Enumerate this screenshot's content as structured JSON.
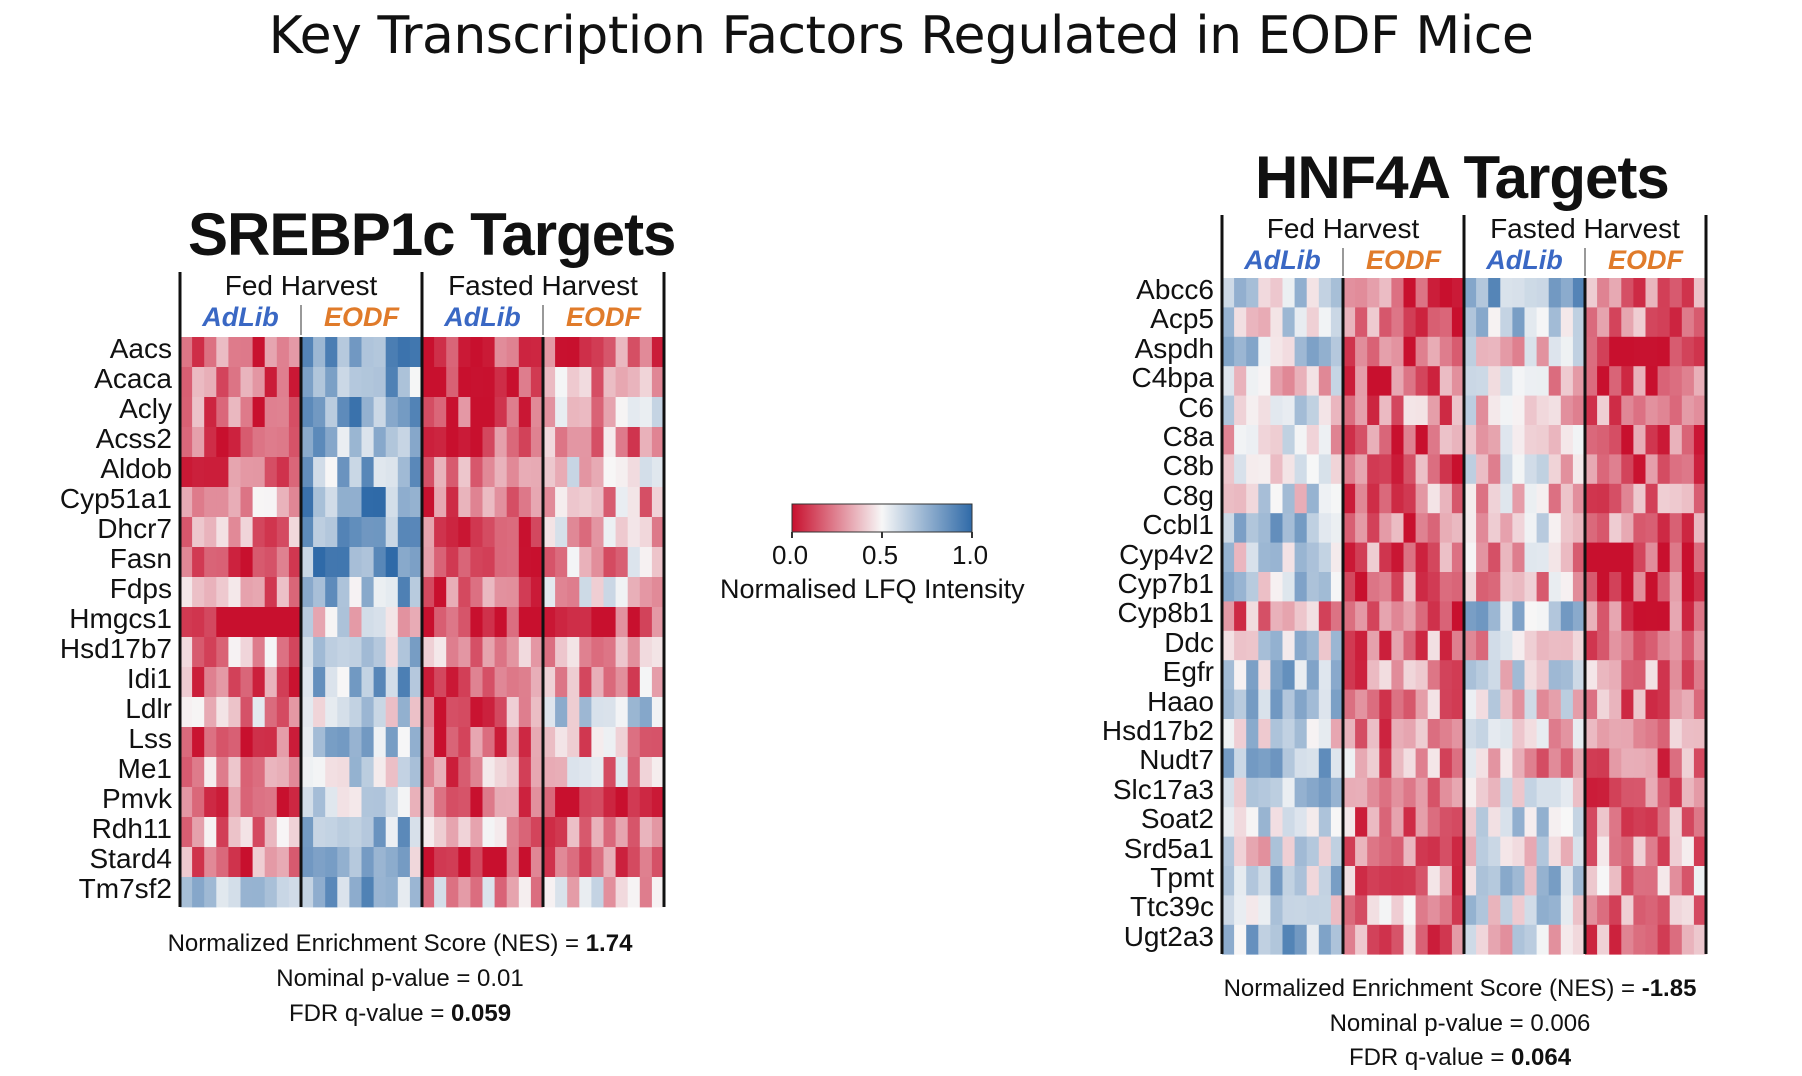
{
  "title": "Key Transcription Factors Regulated in EODF Mice",
  "colors": {
    "low": "#c8102e",
    "mid": "#f7f7f7",
    "high": "#2f6aa8",
    "adlib": "#3a68c4",
    "eodf": "#e07b2a"
  },
  "legend": {
    "ticks": [
      "0.0",
      "0.5",
      "1.0"
    ],
    "label": "Normalised LFQ Intensity"
  },
  "chart_data": [
    {
      "type": "heatmap",
      "title": "SREBP1c Targets",
      "harvest_groups": [
        "Fed Harvest",
        "Fasted Harvest"
      ],
      "conditions": [
        "AdLib",
        "EODF",
        "AdLib",
        "EODF"
      ],
      "samples_per_condition": 10,
      "value_range": [
        0,
        1
      ],
      "rows": [
        "Aacs",
        "Acaca",
        "Acly",
        "Acss2",
        "Aldob",
        "Cyp51a1",
        "Dhcr7",
        "Fasn",
        "Fdps",
        "Hmgcs1",
        "Hsd17b7",
        "Idi1",
        "Ldlr",
        "Lss",
        "Me1",
        "Pmvk",
        "Rdh11",
        "Stard4",
        "Tm7sf2"
      ],
      "group_means": [
        [
          0.15,
          0.8,
          0.08,
          0.15
        ],
        [
          0.2,
          0.72,
          0.1,
          0.35
        ],
        [
          0.18,
          0.75,
          0.1,
          0.4
        ],
        [
          0.15,
          0.7,
          0.1,
          0.3
        ],
        [
          0.2,
          0.68,
          0.25,
          0.5
        ],
        [
          0.3,
          0.8,
          0.15,
          0.35
        ],
        [
          0.25,
          0.75,
          0.2,
          0.4
        ],
        [
          0.12,
          0.82,
          0.1,
          0.35
        ],
        [
          0.25,
          0.7,
          0.15,
          0.45
        ],
        [
          0.05,
          0.5,
          0.08,
          0.1
        ],
        [
          0.3,
          0.65,
          0.3,
          0.25
        ],
        [
          0.2,
          0.72,
          0.15,
          0.3
        ],
        [
          0.35,
          0.6,
          0.2,
          0.6
        ],
        [
          0.15,
          0.68,
          0.15,
          0.3
        ],
        [
          0.3,
          0.55,
          0.25,
          0.35
        ],
        [
          0.12,
          0.5,
          0.15,
          0.08
        ],
        [
          0.3,
          0.7,
          0.3,
          0.25
        ],
        [
          0.2,
          0.65,
          0.1,
          0.25
        ],
        [
          0.7,
          0.72,
          0.4,
          0.45
        ]
      ],
      "stats": {
        "nes_label": "Normalized Enrichment Score (NES) = ",
        "nes": "1.74",
        "pval": "Nominal p-value = 0.01",
        "fdr_label": "FDR q-value = ",
        "fdr": "0.059"
      }
    },
    {
      "type": "heatmap",
      "title": "HNF4A Targets",
      "harvest_groups": [
        "Fed Harvest",
        "Fasted Harvest"
      ],
      "conditions": [
        "AdLib",
        "EODF",
        "AdLib",
        "EODF"
      ],
      "samples_per_condition": 10,
      "value_range": [
        0,
        1
      ],
      "rows": [
        "Abcc6",
        "Acp5",
        "Aspdh",
        "C4bpa",
        "C6",
        "C8a",
        "C8b",
        "C8g",
        "Ccbl1",
        "Cyp4v2",
        "Cyp7b1",
        "Cyp8b1",
        "Ddc",
        "Egfr",
        "Haao",
        "Hsd17b2",
        "Nudt7",
        "Slc17a3",
        "Soat2",
        "Srd5a1",
        "Tpmt",
        "Ttc39c",
        "Ugt2a3"
      ],
      "group_means": [
        [
          0.6,
          0.2,
          0.8,
          0.25
        ],
        [
          0.55,
          0.2,
          0.6,
          0.25
        ],
        [
          0.6,
          0.2,
          0.45,
          0.15
        ],
        [
          0.45,
          0.15,
          0.4,
          0.15
        ],
        [
          0.5,
          0.25,
          0.45,
          0.2
        ],
        [
          0.45,
          0.2,
          0.4,
          0.15
        ],
        [
          0.45,
          0.2,
          0.45,
          0.15
        ],
        [
          0.55,
          0.25,
          0.4,
          0.2
        ],
        [
          0.7,
          0.2,
          0.45,
          0.2
        ],
        [
          0.55,
          0.2,
          0.35,
          0.15
        ],
        [
          0.6,
          0.2,
          0.35,
          0.1
        ],
        [
          0.25,
          0.2,
          0.65,
          0.2
        ],
        [
          0.6,
          0.25,
          0.4,
          0.3
        ],
        [
          0.65,
          0.25,
          0.5,
          0.25
        ],
        [
          0.75,
          0.25,
          0.45,
          0.25
        ],
        [
          0.55,
          0.25,
          0.45,
          0.25
        ],
        [
          0.7,
          0.3,
          0.35,
          0.2
        ],
        [
          0.6,
          0.25,
          0.45,
          0.25
        ],
        [
          0.55,
          0.25,
          0.55,
          0.25
        ],
        [
          0.5,
          0.25,
          0.5,
          0.3
        ],
        [
          0.65,
          0.25,
          0.6,
          0.3
        ],
        [
          0.55,
          0.3,
          0.55,
          0.3
        ],
        [
          0.7,
          0.25,
          0.5,
          0.25
        ]
      ],
      "stats": {
        "nes_label": "Normalized Enrichment Score (NES) = ",
        "nes": "-1.85",
        "pval": "Nominal p-value = 0.006",
        "fdr_label": "FDR q-value = ",
        "fdr": "0.064"
      }
    }
  ]
}
